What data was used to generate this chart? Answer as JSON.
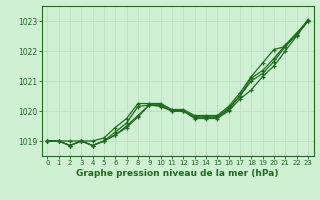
{
  "background_color": "#cff0d3",
  "grid_color": "#c0dcc0",
  "line_color": "#1e6b1e",
  "xlabel": "Graphe pression niveau de la mer (hPa)",
  "xlim": [
    -0.5,
    23.5
  ],
  "ylim": [
    1018.5,
    1023.5
  ],
  "yticks": [
    1019,
    1020,
    1021,
    1022,
    1023
  ],
  "xticks": [
    0,
    1,
    2,
    3,
    4,
    5,
    6,
    7,
    8,
    9,
    10,
    11,
    12,
    13,
    14,
    15,
    16,
    17,
    18,
    19,
    20,
    21,
    22,
    23
  ],
  "series": [
    [
      1019.0,
      1019.0,
      1018.85,
      1019.0,
      1018.85,
      1019.0,
      1019.2,
      1019.45,
      1019.8,
      1020.2,
      1020.15,
      1020.0,
      1020.0,
      1019.75,
      1019.75,
      1019.75,
      1020.0,
      1020.4,
      1020.7,
      1021.15,
      1021.5,
      1022.0,
      1022.5,
      1023.0
    ],
    [
      1019.0,
      1019.0,
      1018.85,
      1019.0,
      1018.85,
      1019.0,
      1019.2,
      1019.5,
      1019.85,
      1020.2,
      1020.2,
      1020.0,
      1020.0,
      1019.8,
      1019.8,
      1019.8,
      1020.05,
      1020.5,
      1021.0,
      1021.25,
      1021.65,
      1022.15,
      1022.55,
      1023.0
    ],
    [
      1019.0,
      1019.0,
      1018.85,
      1019.0,
      1018.85,
      1019.0,
      1019.3,
      1019.6,
      1020.15,
      1020.2,
      1020.2,
      1020.0,
      1020.0,
      1019.8,
      1019.8,
      1019.8,
      1020.1,
      1020.5,
      1021.1,
      1021.35,
      1021.75,
      1022.2,
      1022.6,
      1023.0
    ],
    [
      1019.0,
      1019.0,
      1019.0,
      1019.0,
      1019.0,
      1019.1,
      1019.45,
      1019.75,
      1020.25,
      1020.25,
      1020.25,
      1020.05,
      1020.05,
      1019.85,
      1019.85,
      1019.85,
      1020.15,
      1020.6,
      1021.15,
      1021.6,
      1022.05,
      1022.15,
      1022.55,
      1023.05
    ]
  ]
}
